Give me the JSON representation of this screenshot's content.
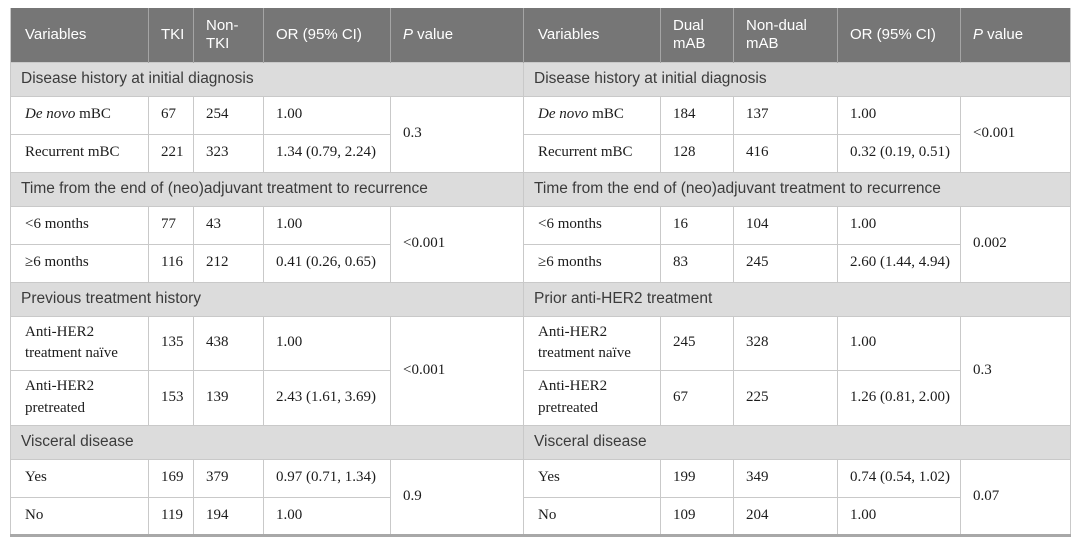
{
  "colors": {
    "header_bg": "#767676",
    "header_text": "#ffffff",
    "header_divider": "#a5a5a5",
    "section_bg": "#dcdcdc",
    "section_text": "#3b3b3b",
    "grid_border": "#c9c9c9",
    "bottom_border": "#a8a8a8",
    "data_text": "#1c1c1c",
    "page_bg": "#ffffff"
  },
  "table": {
    "halves": [
      {
        "id": "tki-comparison",
        "headers": [
          {
            "key": "variables",
            "text": "Variables"
          },
          {
            "key": "tki",
            "text": "TKI"
          },
          {
            "key": "non-tki",
            "text": "Non-TKI"
          },
          {
            "key": "or-ci",
            "text": "OR (95% CI)"
          },
          {
            "key": "p-value",
            "italic_prefix": "P",
            "text": " value"
          }
        ],
        "sections": [
          {
            "title": "Disease history at initial diagnosis",
            "p_value": "0.3",
            "rows": [
              {
                "label_italic": "De novo",
                "label": " mBC",
                "count_a": "67",
                "count_b": "254",
                "or_ci": "1.00"
              },
              {
                "label": "Recurrent mBC",
                "count_a": "221",
                "count_b": "323",
                "or_ci": "1.34 (0.79, 2.24)"
              }
            ]
          },
          {
            "title": "Time from the end of (neo)adjuvant treatment to recurrence",
            "p_value": "<0.001",
            "rows": [
              {
                "label": "<6 months",
                "count_a": "77",
                "count_b": "43",
                "or_ci": "1.00"
              },
              {
                "label": "≥6 months",
                "count_a": "116",
                "count_b": "212",
                "or_ci": "0.41 (0.26, 0.65)"
              }
            ]
          },
          {
            "title": "Previous treatment history",
            "p_value": "<0.001",
            "tall": true,
            "rows": [
              {
                "label": "Anti-HER2 treatment naïve",
                "count_a": "135",
                "count_b": "438",
                "or_ci": "1.00"
              },
              {
                "label": "Anti-HER2 pretreated",
                "count_a": "153",
                "count_b": "139",
                "or_ci": "2.43 (1.61, 3.69)"
              }
            ]
          },
          {
            "title": "Visceral disease",
            "p_value": "0.9",
            "rows": [
              {
                "label": "Yes",
                "count_a": "169",
                "count_b": "379",
                "or_ci": "0.97 (0.71, 1.34)"
              },
              {
                "label": "No",
                "count_a": "119",
                "count_b": "194",
                "or_ci": "1.00"
              }
            ]
          }
        ]
      },
      {
        "id": "mab-comparison",
        "headers": [
          {
            "key": "variables",
            "text": "Variables"
          },
          {
            "key": "dual-mab",
            "text": "Dual mAB"
          },
          {
            "key": "non-dual-mab",
            "text": "Non-dual mAB"
          },
          {
            "key": "or-ci",
            "text": "OR (95% CI)"
          },
          {
            "key": "p-value",
            "italic_prefix": "P",
            "text": " value"
          }
        ],
        "sections": [
          {
            "title": "Disease history at initial diagnosis",
            "p_value": "<0.001",
            "rows": [
              {
                "label_italic": "De novo",
                "label": " mBC",
                "count_a": "184",
                "count_b": "137",
                "or_ci": "1.00"
              },
              {
                "label": "Recurrent mBC",
                "count_a": "128",
                "count_b": "416",
                "or_ci": "0.32 (0.19, 0.51)"
              }
            ]
          },
          {
            "title": "Time from the end of (neo)adjuvant treatment to recurrence",
            "p_value": "0.002",
            "rows": [
              {
                "label": "<6 months",
                "count_a": "16",
                "count_b": "104",
                "or_ci": "1.00"
              },
              {
                "label": "≥6 months",
                "count_a": "83",
                "count_b": "245",
                "or_ci": "2.60 (1.44, 4.94)"
              }
            ]
          },
          {
            "title": "Prior anti-HER2 treatment",
            "p_value": "0.3",
            "tall": true,
            "rows": [
              {
                "label": "Anti-HER2 treatment naïve",
                "count_a": "245",
                "count_b": "328",
                "or_ci": "1.00"
              },
              {
                "label": "Anti-HER2 pretreated",
                "count_a": "67",
                "count_b": "225",
                "or_ci": "1.26 (0.81, 2.00)"
              }
            ]
          },
          {
            "title": "Visceral disease",
            "p_value": "0.07",
            "rows": [
              {
                "label": "Yes",
                "count_a": "199",
                "count_b": "349",
                "or_ci": "0.74 (0.54, 1.02)"
              },
              {
                "label": "No",
                "count_a": "109",
                "count_b": "204",
                "or_ci": "1.00"
              }
            ]
          }
        ]
      }
    ]
  }
}
